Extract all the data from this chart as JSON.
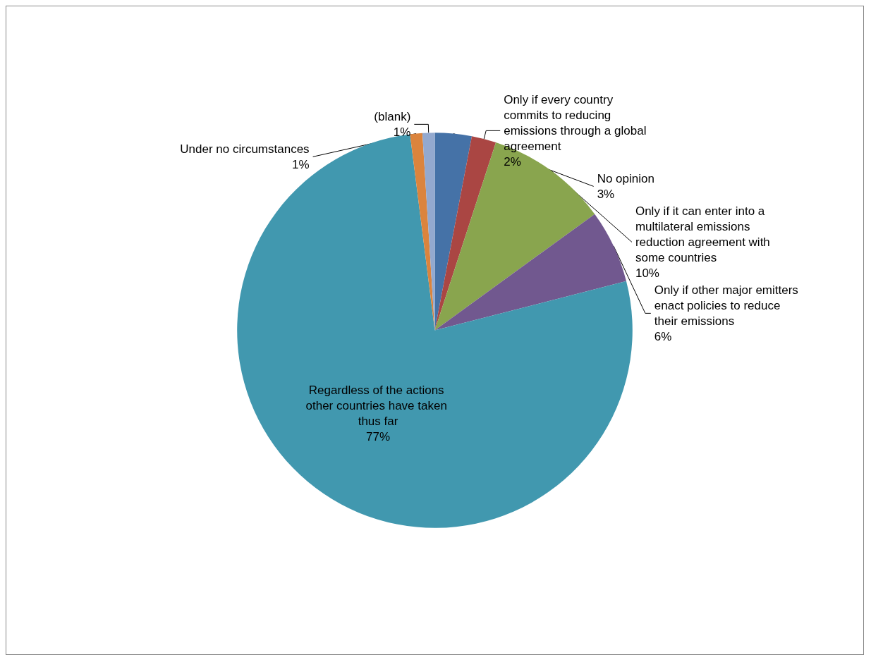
{
  "chart_data": {
    "type": "pie",
    "categories": [
      "No opinion",
      "Only if every country commits to reducing emissions through a global agreement",
      "Only if it can enter into a multilateral emissions reduction agreement with some countries",
      "Only if other major emitters enact policies to reduce their emissions",
      "Regardless of the actions other countries have taken thus far",
      "Under no circumstances",
      "(blank)"
    ],
    "values": [
      3,
      2,
      10,
      6,
      77,
      1,
      1
    ],
    "value_labels": [
      "3%",
      "2%",
      "10%",
      "6%",
      "77%",
      "1%",
      "1%"
    ],
    "colors": [
      "#4572a7",
      "#aa4643",
      "#89a54e",
      "#71588f",
      "#4198af",
      "#db843d",
      "#93a9cf"
    ],
    "legend": false
  }
}
